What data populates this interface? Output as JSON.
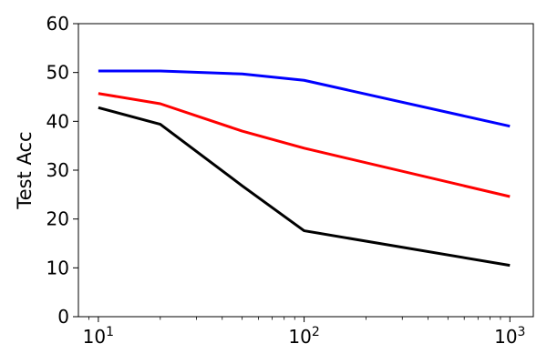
{
  "chart_data": {
    "type": "line",
    "title": "",
    "xlabel": "",
    "ylabel": "Test Acc",
    "x_scale": "log",
    "xlim": [
      8,
      1300
    ],
    "ylim": [
      0,
      60
    ],
    "grid": false,
    "legend": "none",
    "x_ticks": [
      {
        "value": 10,
        "base": "10",
        "exp": "1"
      },
      {
        "value": 100,
        "base": "10",
        "exp": "2"
      },
      {
        "value": 1000,
        "base": "10",
        "exp": "3"
      }
    ],
    "y_ticks": [
      0,
      10,
      20,
      30,
      40,
      50,
      60
    ],
    "series": [
      {
        "color": "#0000ff",
        "x": [
          10,
          20,
          50,
          100,
          1000
        ],
        "y": [
          50.3,
          50.3,
          49.7,
          48.4,
          39.0
        ]
      },
      {
        "color": "#ff0000",
        "x": [
          10,
          20,
          50,
          100,
          1000
        ],
        "y": [
          45.7,
          43.6,
          38.0,
          34.5,
          24.6
        ]
      },
      {
        "color": "#000000",
        "x": [
          10,
          20,
          50,
          100,
          1000
        ],
        "y": [
          42.8,
          39.4,
          26.8,
          17.6,
          10.5
        ]
      }
    ]
  }
}
